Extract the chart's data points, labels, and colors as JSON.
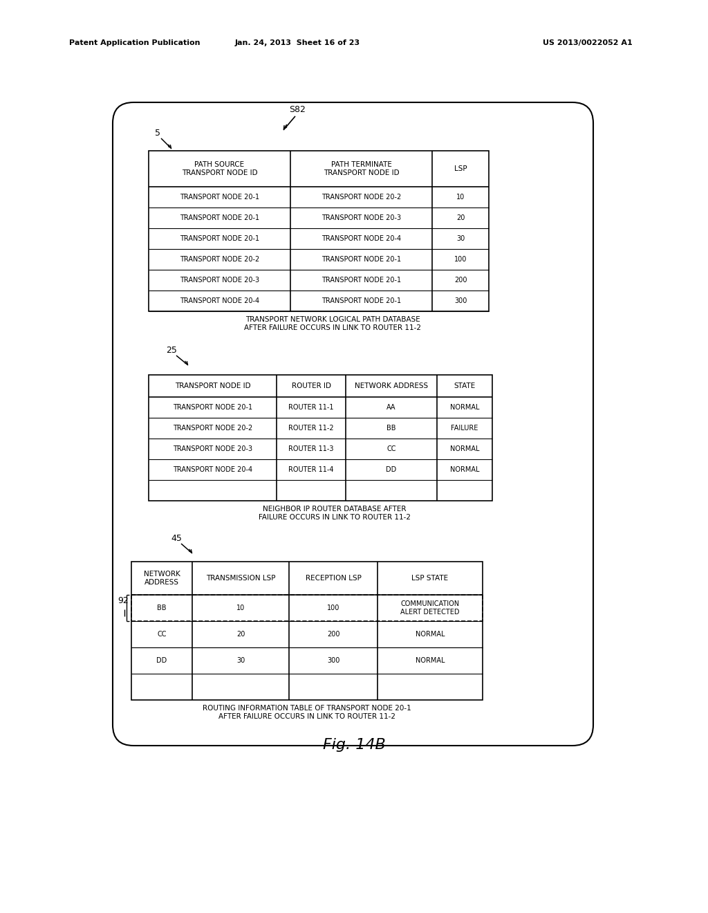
{
  "header_text_left": "Patent Application Publication",
  "header_text_mid": "Jan. 24, 2013  Sheet 16 of 23",
  "header_text_right": "US 2013/0022052 A1",
  "fig_label": "Fig. 14B",
  "s82_label": "S82",
  "label_5": "5",
  "label_25": "25",
  "label_45": "45",
  "label_92": "92",
  "table1_caption": "TRANSPORT NETWORK LOGICAL PATH DATABASE\nAFTER FAILURE OCCURS IN LINK TO ROUTER 11-2",
  "table2_caption": "NEIGHBOR IP ROUTER DATABASE AFTER\nFAILURE OCCURS IN LINK TO ROUTER 11-2",
  "table3_caption": "ROUTING INFORMATION TABLE OF TRANSPORT NODE 20-1\nAFTER FAILURE OCCURS IN LINK TO ROUTER 11-2",
  "table1_headers": [
    "PATH SOURCE\nTRANSPORT NODE ID",
    "PATH TERMINATE\nTRANSPORT NODE ID",
    "LSP"
  ],
  "table1_rows": [
    [
      "TRANSPORT NODE 20-1",
      "TRANSPORT NODE 20-2",
      "10"
    ],
    [
      "TRANSPORT NODE 20-1",
      "TRANSPORT NODE 20-3",
      "20"
    ],
    [
      "TRANSPORT NODE 20-1",
      "TRANSPORT NODE 20-4",
      "30"
    ],
    [
      "TRANSPORT NODE 20-2",
      "TRANSPORT NODE 20-1",
      "100"
    ],
    [
      "TRANSPORT NODE 20-3",
      "TRANSPORT NODE 20-1",
      "200"
    ],
    [
      "TRANSPORT NODE 20-4",
      "TRANSPORT NODE 20-1",
      "300"
    ]
  ],
  "table2_headers": [
    "TRANSPORT NODE ID",
    "ROUTER ID",
    "NETWORK ADDRESS",
    "STATE"
  ],
  "table2_rows": [
    [
      "TRANSPORT NODE 20-1",
      "ROUTER 11-1",
      "AA",
      "NORMAL"
    ],
    [
      "TRANSPORT NODE 20-2",
      "ROUTER 11-2",
      "BB",
      "FAILURE"
    ],
    [
      "TRANSPORT NODE 20-3",
      "ROUTER 11-3",
      "CC",
      "NORMAL"
    ],
    [
      "TRANSPORT NODE 20-4",
      "ROUTER 11-4",
      "DD",
      "NORMAL"
    ]
  ],
  "table3_headers": [
    "NETWORK\nADDRESS",
    "TRANSMISSION LSP",
    "RECEPTION LSP",
    "LSP STATE"
  ],
  "table3_rows": [
    [
      "BB",
      "10",
      "100",
      "COMMUNICATION\nALERT DETECTED"
    ],
    [
      "CC",
      "20",
      "200",
      "NORMAL"
    ],
    [
      "DD",
      "30",
      "300",
      "NORMAL"
    ]
  ],
  "bg_color": "#ffffff",
  "line_color": "#000000",
  "text_color": "#000000"
}
